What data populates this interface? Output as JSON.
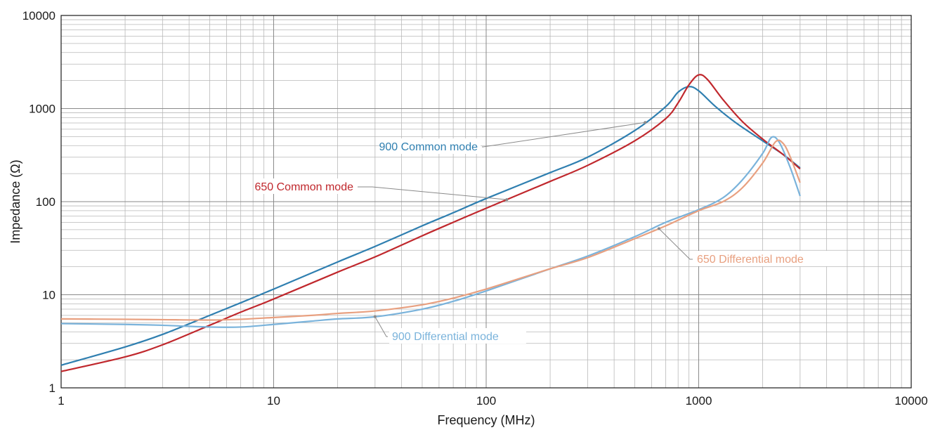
{
  "chart_data": {
    "type": "line",
    "x_scale": "log",
    "y_scale": "log",
    "xlim": [
      1,
      10000
    ],
    "ylim": [
      1,
      10000
    ],
    "xlabel": "Frequency (MHz)",
    "ylabel": "Impedance (Ω)",
    "x_ticks": [
      "1",
      "10",
      "100",
      "1000",
      "10000"
    ],
    "y_ticks": [
      "1",
      "10",
      "100",
      "1000",
      "10000"
    ],
    "grid": true,
    "legend": "inline labels with leader lines",
    "series": [
      {
        "name": "900 Common mode",
        "color": "#2f7fb0",
        "x": [
          1,
          2,
          3,
          5,
          7,
          10,
          20,
          30,
          50,
          70,
          100,
          200,
          300,
          500,
          700,
          800,
          900,
          1000,
          1200,
          1500,
          2000,
          2500,
          3000
        ],
        "y": [
          1.75,
          2.75,
          3.75,
          6.0,
          8.2,
          11.5,
          22.5,
          33,
          55,
          76,
          108,
          205,
          300,
          580,
          1050,
          1500,
          1720,
          1550,
          1050,
          700,
          450,
          320,
          230
        ]
      },
      {
        "name": "650 Common mode",
        "color": "#c0282d",
        "x": [
          1,
          2,
          3,
          5,
          7,
          10,
          20,
          30,
          50,
          70,
          100,
          200,
          300,
          500,
          700,
          800,
          900,
          1000,
          1100,
          1300,
          1600,
          2000,
          2500,
          3000
        ],
        "y": [
          1.5,
          2.15,
          2.9,
          4.7,
          6.5,
          9.0,
          17.5,
          25.5,
          43,
          60,
          85,
          165,
          245,
          450,
          780,
          1150,
          1800,
          2300,
          2050,
          1250,
          730,
          470,
          320,
          225
        ]
      },
      {
        "name": "900 Differential mode",
        "color": "#7ab3db",
        "x": [
          1,
          2,
          3,
          5,
          7,
          10,
          15,
          20,
          30,
          50,
          70,
          100,
          200,
          300,
          500,
          700,
          1000,
          1300,
          1600,
          2000,
          2200,
          2400,
          2700,
          3000
        ],
        "y": [
          4.9,
          4.8,
          4.7,
          4.5,
          4.5,
          4.8,
          5.2,
          5.5,
          5.8,
          7.0,
          8.5,
          11,
          19,
          26,
          42,
          60,
          82,
          110,
          170,
          330,
          490,
          430,
          230,
          115
        ]
      },
      {
        "name": "650 Differential mode",
        "color": "#e8a080",
        "x": [
          1,
          2,
          3,
          5,
          7,
          10,
          15,
          20,
          30,
          50,
          70,
          100,
          200,
          300,
          500,
          700,
          1000,
          1300,
          1600,
          2000,
          2300,
          2500,
          2700,
          3000
        ],
        "y": [
          5.5,
          5.45,
          5.4,
          5.35,
          5.45,
          5.7,
          6.0,
          6.3,
          6.7,
          7.8,
          9.2,
          11.5,
          19,
          25,
          40,
          55,
          80,
          100,
          140,
          260,
          440,
          420,
          300,
          160
        ]
      }
    ],
    "annotations": [
      {
        "text": "900 Common mode",
        "series": 0,
        "at_x": 560
      },
      {
        "text": "650 Common mode",
        "series": 1,
        "at_x": 125
      },
      {
        "text": "650 Differential mode",
        "series": 3,
        "at_x": 650
      },
      {
        "text": "900 Differential mode",
        "series": 2,
        "at_x": 30
      }
    ]
  }
}
